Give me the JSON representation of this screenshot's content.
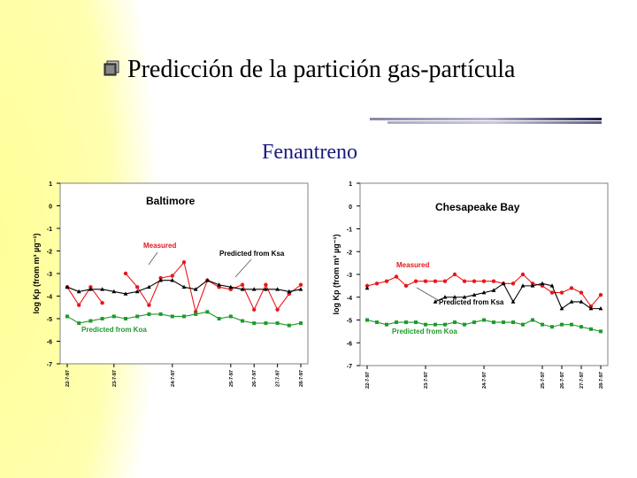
{
  "slide": {
    "title": "Predicción de la partición gas-partícula",
    "subtitle": "Fenantreno"
  },
  "colors": {
    "measured": "#e8171b",
    "predicted_ksa": "#000000",
    "predicted_koa": "#1e9a2a",
    "subtitle": "#1a1a80"
  },
  "chart_data": [
    {
      "type": "line",
      "title": "Baltimore",
      "ylabel": "log Kp (from m³ µg⁻¹)",
      "ylim": [
        -7,
        1
      ],
      "yticks": [
        1,
        0,
        -1,
        -2,
        -3,
        -4,
        -5,
        -6,
        -7
      ],
      "x_ticks": [
        "22-7-97",
        "23-7-97",
        "24-7-97",
        "25-7-97",
        "26-7-97",
        "27-7-97",
        "28-7-97"
      ],
      "x_tick_positions": [
        0,
        4,
        9,
        14,
        16,
        18,
        20
      ],
      "x": [
        0,
        1,
        2,
        3,
        4,
        5,
        6,
        7,
        8,
        9,
        10,
        11,
        12,
        13,
        14,
        15,
        16,
        17,
        18,
        19,
        20
      ],
      "series": [
        {
          "name": "Measured",
          "values": [
            -3.6,
            -4.4,
            -3.6,
            -4.3,
            null,
            -3.0,
            -3.6,
            -4.4,
            -3.2,
            -3.1,
            -2.5,
            -4.7,
            -3.3,
            -3.6,
            -3.7,
            -3.5,
            -4.6,
            -3.5,
            -4.6,
            -3.9,
            -3.5
          ]
        },
        {
          "name": "Predicted from Ksa",
          "values": [
            -3.6,
            -3.8,
            -3.7,
            -3.7,
            -3.8,
            -3.9,
            -3.8,
            -3.6,
            -3.3,
            -3.3,
            -3.6,
            -3.7,
            -3.3,
            -3.5,
            -3.6,
            -3.7,
            -3.7,
            -3.7,
            -3.7,
            -3.8,
            -3.7
          ]
        },
        {
          "name": "Predicted from Koa",
          "values": [
            -4.9,
            -5.2,
            -5.1,
            -5.0,
            -4.9,
            -5.0,
            -4.9,
            -4.8,
            -4.8,
            -4.9,
            -4.9,
            -4.8,
            -4.7,
            -5.0,
            -4.9,
            -5.1,
            -5.2,
            -5.2,
            -5.2,
            -5.3,
            -5.2
          ]
        }
      ],
      "annotations": [
        "Measured",
        "Predicted from Ksa",
        "Predicted from Koa"
      ]
    },
    {
      "type": "line",
      "title": "Chesapeake Bay",
      "ylabel": "log Kp (from m³ µg⁻¹)",
      "ylim": [
        -7,
        1
      ],
      "yticks": [
        1,
        0,
        -1,
        -2,
        -3,
        -4,
        -5,
        -6,
        -7
      ],
      "x_ticks": [
        "22-7-97",
        "23-7-97",
        "24-7-97",
        "25-7-97",
        "26-7-97",
        "27-7-97",
        "28-7-97"
      ],
      "x_tick_positions": [
        0,
        6,
        12,
        18,
        20,
        22,
        24
      ],
      "x": [
        0,
        1,
        2,
        3,
        4,
        5,
        6,
        7,
        8,
        9,
        10,
        11,
        12,
        13,
        14,
        15,
        16,
        17,
        18,
        19,
        20,
        21,
        22,
        23,
        24
      ],
      "series": [
        {
          "name": "Measured",
          "values": [
            -3.5,
            -3.4,
            -3.3,
            -3.1,
            -3.5,
            -3.3,
            -3.3,
            -3.3,
            -3.3,
            -3.0,
            -3.3,
            -3.3,
            -3.3,
            -3.3,
            -3.4,
            -3.4,
            -3.0,
            -3.4,
            -3.5,
            -3.8,
            -3.8,
            -3.6,
            -3.8,
            -4.4,
            -3.9
          ]
        },
        {
          "name": "Predicted from Ksa",
          "values": [
            -3.6,
            null,
            null,
            null,
            null,
            null,
            null,
            -4.2,
            -4.0,
            -4.0,
            -4.0,
            -3.9,
            -3.8,
            -3.7,
            -3.4,
            -4.2,
            -3.5,
            -3.5,
            -3.4,
            -3.5,
            -4.5,
            -4.2,
            -4.2,
            -4.5,
            -4.5
          ]
        },
        {
          "name": "Predicted from Koa",
          "values": [
            -5.0,
            -5.1,
            -5.2,
            -5.1,
            -5.1,
            -5.1,
            -5.2,
            -5.2,
            -5.2,
            -5.1,
            -5.2,
            -5.1,
            -5.0,
            -5.1,
            -5.1,
            -5.1,
            -5.2,
            -5.0,
            -5.2,
            -5.3,
            -5.2,
            -5.2,
            -5.3,
            -5.4,
            -5.5
          ]
        }
      ],
      "annotations": [
        "Measured",
        "Predicted from Ksa",
        "Predicted from Koa"
      ]
    }
  ]
}
